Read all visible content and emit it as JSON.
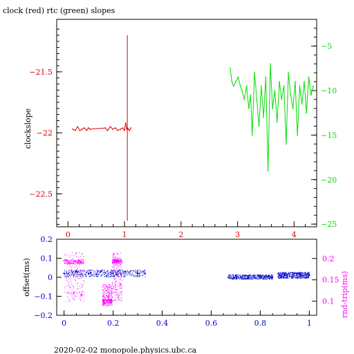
{
  "title": "clock (red) rtc (green) slopes",
  "footer": "2020-02-02  monopole.physics.ubc.ca",
  "colors": {
    "red": "#dd0000",
    "green": "#00dd00",
    "blue": "#0000cc",
    "magenta": "#ff00ff",
    "axis": "#000000"
  },
  "chart_data": [
    {
      "type": "line",
      "title": "clock (red) rtc (green) slopes",
      "ylabel": "clockslope",
      "xlim": [
        -0.2,
        4.4
      ],
      "ylim": [
        -22.77,
        -21.07
      ],
      "y2lim": [
        -25.3,
        -2.0
      ],
      "x_ticks": [
        "0",
        "1",
        "2",
        "3",
        "4"
      ],
      "y_ticks": [
        "-21.5",
        "-22",
        "-22.5"
      ],
      "y2_ticks": [
        "-5",
        "-10",
        "-15",
        "-20",
        "-25"
      ],
      "series": [
        {
          "name": "clock",
          "axis": "left",
          "x": [
            0.08,
            0.13,
            0.17,
            0.21,
            0.25,
            0.29,
            0.33,
            0.36,
            0.39,
            0.66,
            0.7,
            0.75,
            0.79,
            0.84,
            0.88,
            0.93,
            0.97,
            1.0,
            1.02,
            1.04,
            1.05,
            1.07,
            1.09,
            1.11
          ],
          "y": [
            -21.97,
            -21.98,
            -21.95,
            -21.98,
            -21.97,
            -21.96,
            -21.98,
            -21.96,
            -21.97,
            -21.96,
            -21.98,
            -21.95,
            -21.97,
            -21.96,
            -21.98,
            -21.97,
            -21.96,
            -21.98,
            -21.92,
            -21.97,
            -21.96,
            -21.97,
            -21.98,
            -21.96
          ]
        },
        {
          "name": "rtc",
          "axis": "right",
          "x": [
            2.87,
            2.9,
            2.93,
            2.97,
            3.01,
            3.05,
            3.08,
            3.12,
            3.16,
            3.2,
            3.23,
            3.26,
            3.3,
            3.34,
            3.38,
            3.42,
            3.46,
            3.5,
            3.54,
            3.58,
            3.62,
            3.66,
            3.7,
            3.74,
            3.78,
            3.82,
            3.86,
            3.9,
            3.94,
            3.98,
            4.02,
            4.06,
            4.1,
            4.14,
            4.18,
            4.22,
            4.26,
            4.3,
            4.34
          ],
          "y": [
            -7.5,
            -9.0,
            -9.5,
            -9.0,
            -8.5,
            -9.5,
            -10.0,
            -11.0,
            -9.5,
            -12.0,
            -10.5,
            -15.0,
            -8.0,
            -11.0,
            -14.0,
            -9.5,
            -13.0,
            -8.5,
            -19.0,
            -7.0,
            -12.0,
            -10.0,
            -13.5,
            -9.0,
            -11.0,
            -9.5,
            -16.0,
            -8.0,
            -10.5,
            -12.0,
            -9.0,
            -15.0,
            -9.5,
            -11.5,
            -9.0,
            -12.5,
            -8.5,
            -10.5,
            -9.5
          ]
        }
      ]
    },
    {
      "type": "scatter",
      "ylabel": "offset(ms)",
      "y2label": "rnd-trip(ms)",
      "xlim": [
        -0.03,
        1.03
      ],
      "ylim": [
        -0.2,
        0.2
      ],
      "y2lim": [
        0.067,
        0.245
      ],
      "x_ticks": [
        "0",
        "0.2",
        "0.4",
        "0.6",
        "0.8",
        "1"
      ],
      "y_ticks": [
        "0.2",
        "0.1",
        "0",
        "-0.1",
        "-0.2"
      ],
      "y2_ticks": [
        "0.2",
        "0.15",
        "0.1"
      ],
      "series": [
        {
          "name": "offset",
          "axis": "left",
          "x": [
            0.0,
            0.05,
            0.1,
            0.15,
            0.2,
            0.25,
            0.3,
            0.33,
            0.67,
            0.7,
            0.75,
            0.8,
            0.85,
            0.88,
            0.9,
            0.95,
            1.0
          ],
          "y": [
            0.02,
            0.03,
            0.02,
            0.03,
            0.02,
            0.03,
            0.02,
            0.02,
            0.0,
            0.01,
            0.0,
            0.01,
            0.0,
            0.01,
            0.01,
            0.02,
            0.01
          ]
        },
        {
          "name": "rnd-trip",
          "axis": "right",
          "x": [
            0.0,
            0.02,
            0.04,
            0.06,
            0.07,
            0.16,
            0.18,
            0.2,
            0.22,
            0.23
          ],
          "y": [
            0.195,
            0.19,
            0.12,
            0.196,
            0.115,
            0.1,
            0.11,
            0.19,
            0.195,
            0.14
          ]
        }
      ]
    }
  ]
}
